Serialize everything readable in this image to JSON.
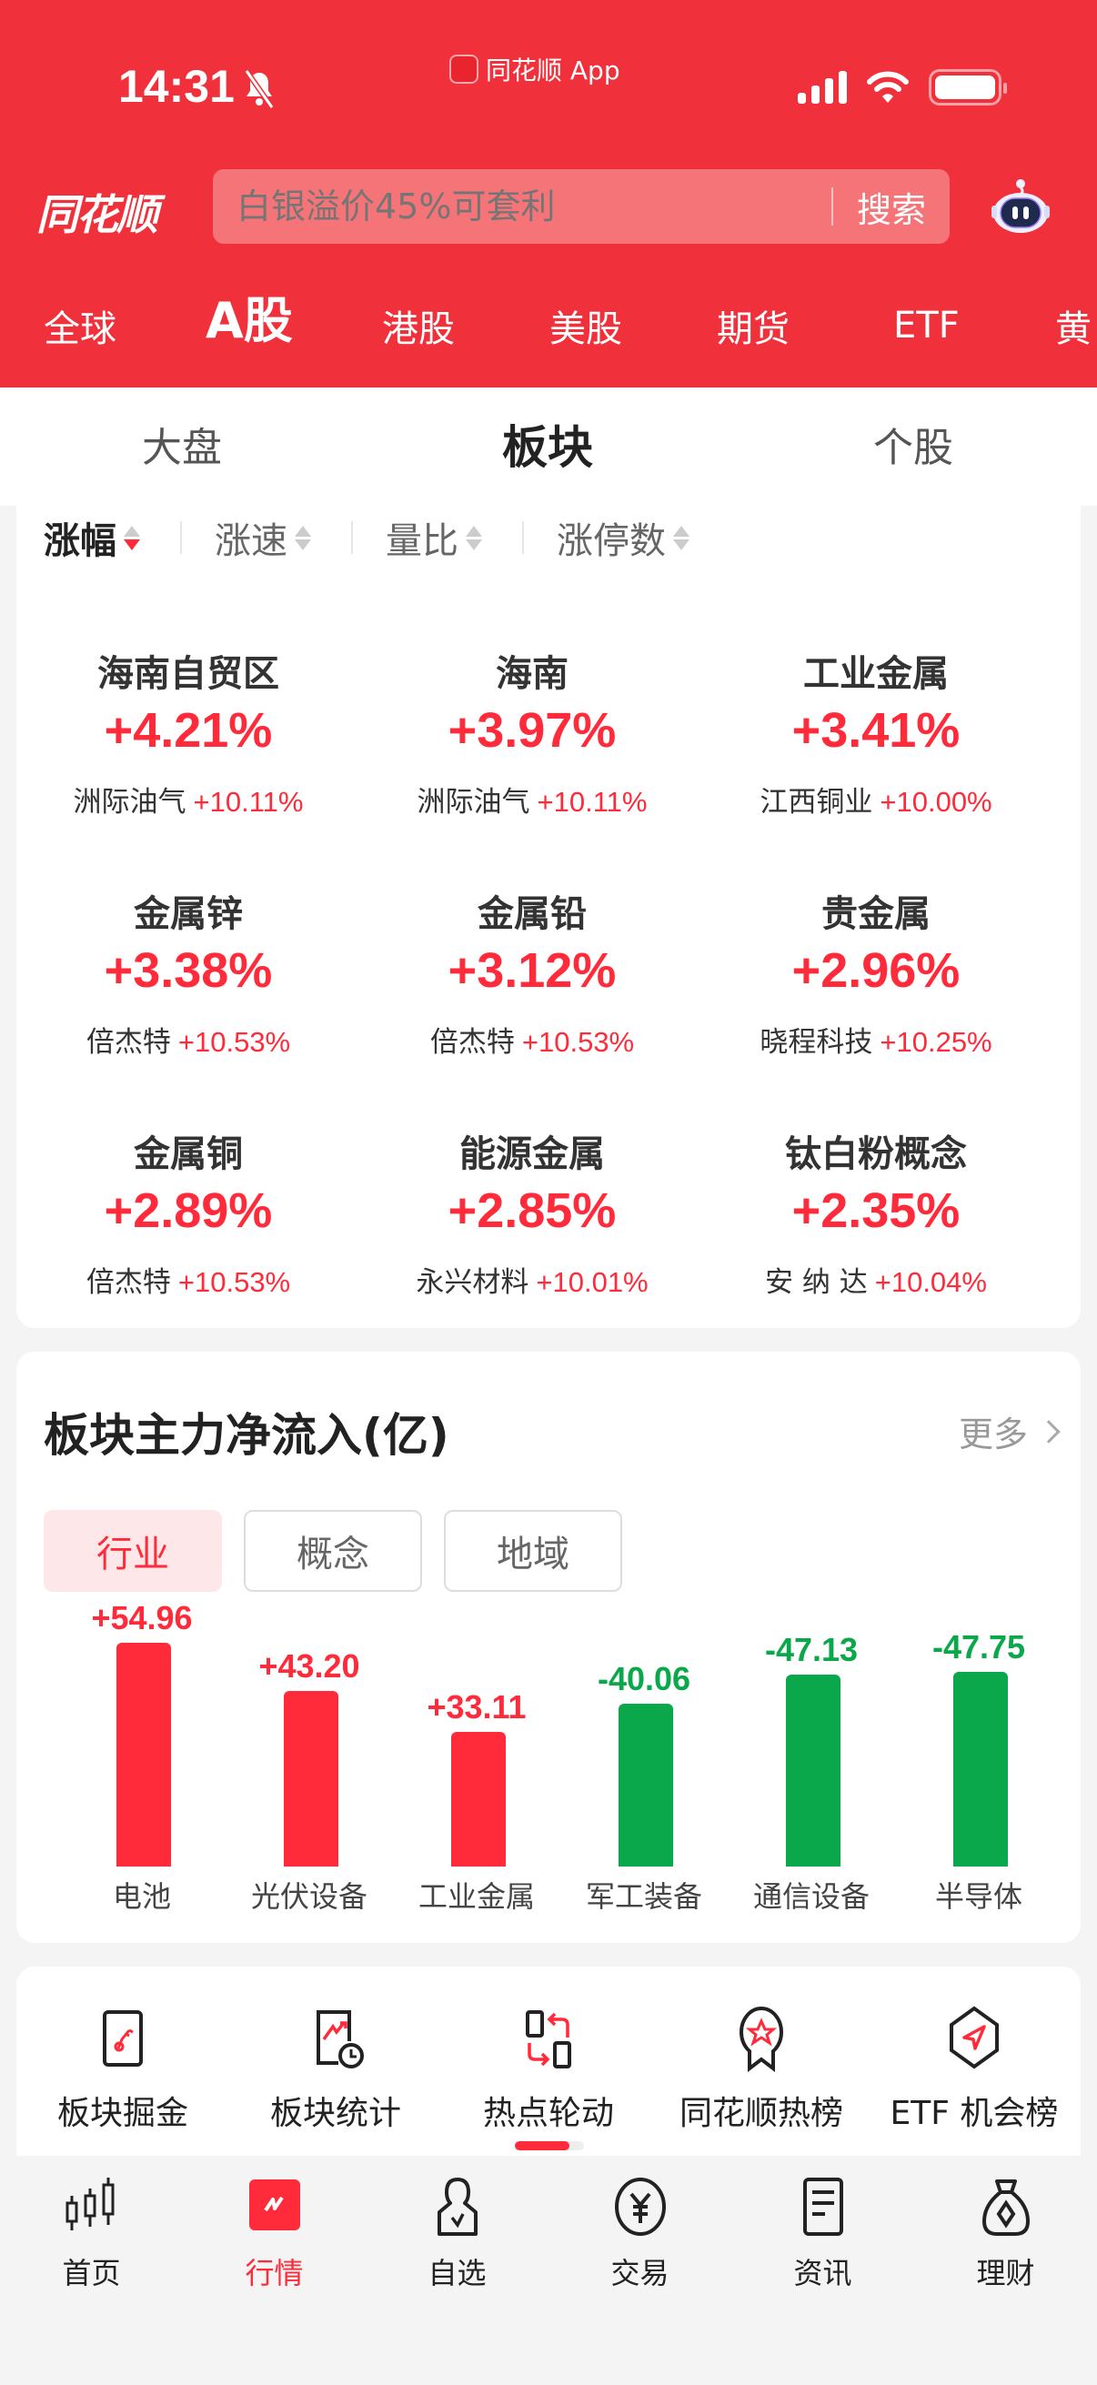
{
  "status_bar": {
    "time": "14:31",
    "app_label": "同花顺 App"
  },
  "header": {
    "logo": "同花顺",
    "search": {
      "placeholder": "白银溢价45%可套利",
      "button": "搜索"
    },
    "market_tabs": [
      {
        "label": "全球",
        "active": false
      },
      {
        "label": "A股",
        "active": true
      },
      {
        "label": "港股",
        "active": false
      },
      {
        "label": "美股",
        "active": false
      },
      {
        "label": "期货",
        "active": false
      },
      {
        "label": "ETF",
        "active": false
      },
      {
        "label": "黄",
        "active": false
      }
    ]
  },
  "sub_tabs": [
    {
      "label": "大盘",
      "active": false
    },
    {
      "label": "板块",
      "active": true
    },
    {
      "label": "个股",
      "active": false
    }
  ],
  "sort_options": [
    {
      "label": "涨幅",
      "active": true,
      "direction": "desc"
    },
    {
      "label": "涨速",
      "active": false
    },
    {
      "label": "量比",
      "active": false
    },
    {
      "label": "涨停数",
      "active": false
    }
  ],
  "sectors": [
    {
      "name": "海南自贸区",
      "pct": "+4.21%",
      "leader": "洲际油气",
      "leader_pct": "+10.11%"
    },
    {
      "name": "海南",
      "pct": "+3.97%",
      "leader": "洲际油气",
      "leader_pct": "+10.11%"
    },
    {
      "name": "工业金属",
      "pct": "+3.41%",
      "leader": "江西铜业",
      "leader_pct": "+10.00%"
    },
    {
      "name": "金属锌",
      "pct": "+3.38%",
      "leader": "倍杰特",
      "leader_pct": "+10.53%"
    },
    {
      "name": "金属铅",
      "pct": "+3.12%",
      "leader": "倍杰特",
      "leader_pct": "+10.53%"
    },
    {
      "name": "贵金属",
      "pct": "+2.96%",
      "leader": "晓程科技",
      "leader_pct": "+10.25%"
    },
    {
      "name": "金属铜",
      "pct": "+2.89%",
      "leader": "倍杰特",
      "leader_pct": "+10.53%"
    },
    {
      "name": "能源金属",
      "pct": "+2.85%",
      "leader": "永兴材料",
      "leader_pct": "+10.01%"
    },
    {
      "name": "钛白粉概念",
      "pct": "+2.35%",
      "leader": "安 纳 达",
      "leader_pct": "+10.04%"
    }
  ],
  "fund_flow": {
    "title": "板块主力净流入(亿)",
    "more": "更多",
    "tabs": [
      {
        "label": "行业",
        "active": true
      },
      {
        "label": "概念",
        "active": false
      },
      {
        "label": "地域",
        "active": false
      }
    ],
    "colors": {
      "inflow": "#ff2a3a",
      "outflow": "#0aa84a"
    }
  },
  "chart_data": {
    "type": "bar",
    "title": "板块主力净流入(亿)",
    "xlabel": "",
    "ylabel": "亿",
    "categories": [
      "电池",
      "光伏设备",
      "工业金属",
      "军工装备",
      "通信设备",
      "半导体"
    ],
    "values": [
      54.96,
      43.2,
      33.11,
      -40.06,
      -47.13,
      -47.75
    ],
    "labels": [
      "+54.96",
      "+43.20",
      "+33.11",
      "-40.06",
      "-47.13",
      "-47.75"
    ],
    "note": "bar heights drawn by absolute value; red = inflow, green = outflow"
  },
  "tools": [
    {
      "label": "板块掘金",
      "icon": "sector-gold-icon"
    },
    {
      "label": "板块统计",
      "icon": "sector-stats-icon"
    },
    {
      "label": "热点轮动",
      "icon": "hot-rotation-icon"
    },
    {
      "label": "同花顺热榜",
      "icon": "hot-list-icon"
    },
    {
      "label": "ETF 机会榜",
      "icon": "etf-opportunity-icon"
    }
  ],
  "tabbar": [
    {
      "label": "首页",
      "active": false
    },
    {
      "label": "行情",
      "active": true
    },
    {
      "label": "自选",
      "active": false
    },
    {
      "label": "交易",
      "active": false
    },
    {
      "label": "资讯",
      "active": false
    },
    {
      "label": "理财",
      "active": false
    }
  ]
}
